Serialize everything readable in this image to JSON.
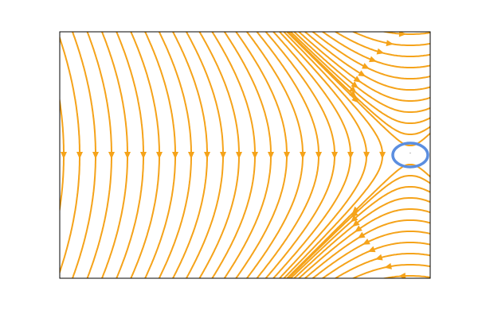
{
  "chart_data": {
    "type": "streamplot",
    "color": "#f5a31a",
    "marker_color": "#5b8ee0",
    "annotation": "-"
  }
}
